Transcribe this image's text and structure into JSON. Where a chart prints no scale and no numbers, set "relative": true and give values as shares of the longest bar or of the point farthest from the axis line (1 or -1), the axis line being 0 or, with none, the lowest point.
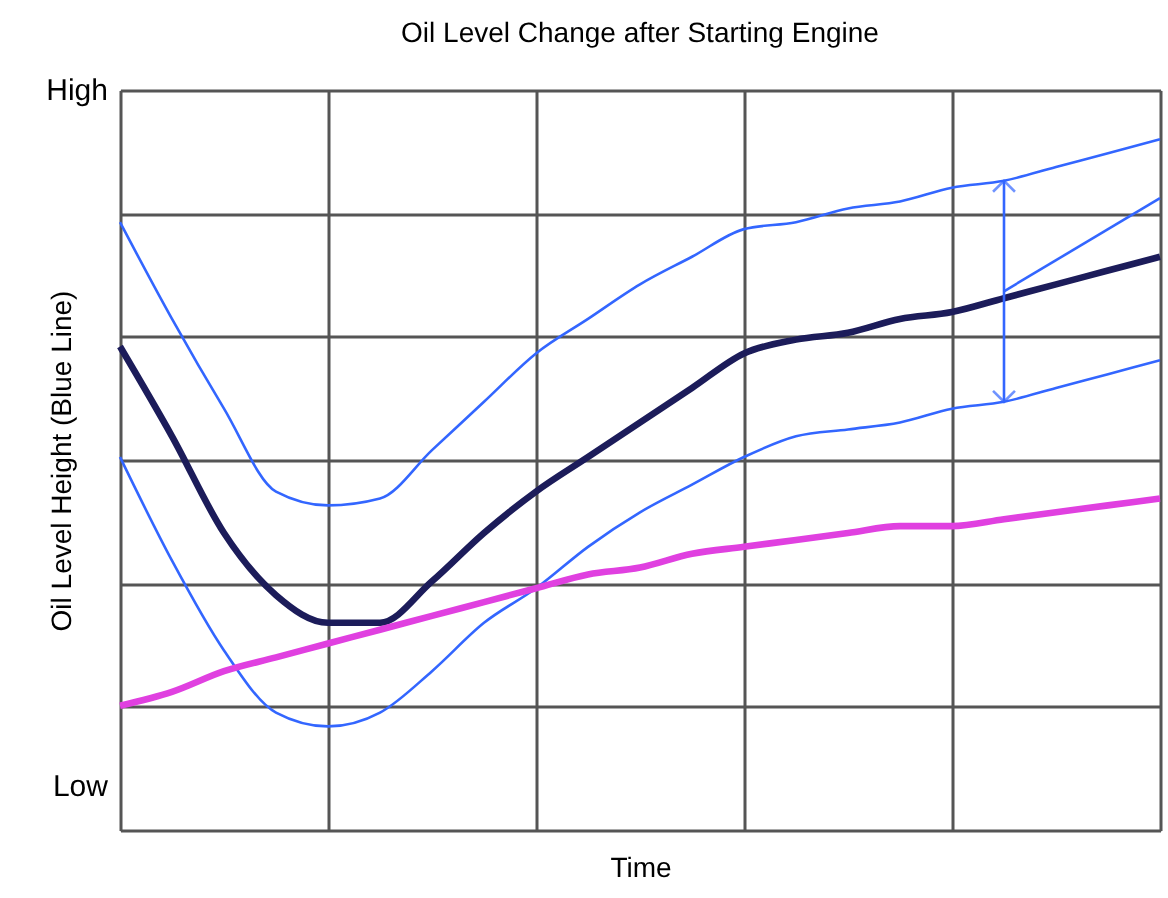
{
  "chart_data": {
    "type": "line",
    "title": "Oil Level Change after Starting Engine",
    "xlabel": "Time",
    "ylabel": "Oil Level Height (Blue Line)",
    "categories": [
      null,
      null,
      null,
      null,
      null,
      null,
      null,
      null,
      null,
      null,
      null,
      null,
      null,
      null,
      null,
      null,
      null,
      null,
      null,
      null,
      null
    ],
    "relative": true,
    "grid": true,
    "line_style": "solid",
    "annotations": [
      "High",
      "Low"
    ],
    "series": [
      {
        "color": "#3366ff",
        "values": [
          0.88,
          0.74,
          0.61,
          0.49,
          0.47,
          0.48,
          0.55,
          0.62,
          0.69,
          0.74,
          0.79,
          0.83,
          0.87,
          0.88,
          0.9,
          0.91,
          0.93,
          0.94,
          0.96,
          0.98,
          1.0
        ]
      },
      {
        "color": "#3366ff",
        "values": [
          0.54,
          0.39,
          0.26,
          0.17,
          0.15,
          0.17,
          0.23,
          0.3,
          0.35,
          0.41,
          0.46,
          0.5,
          0.54,
          0.57,
          0.58,
          0.59,
          0.61,
          0.62,
          0.64,
          0.66,
          0.68
        ]
      },
      {
        "color": "#1c1c5a",
        "values": [
          0.7,
          0.57,
          0.43,
          0.34,
          0.3,
          0.3,
          0.36,
          0.43,
          0.49,
          0.54,
          0.59,
          0.64,
          0.69,
          0.71,
          0.72,
          0.74,
          0.75,
          0.77,
          0.79,
          0.81,
          0.83
        ]
      },
      {
        "color": "#e040e0",
        "values": [
          0.18,
          0.2,
          0.23,
          0.25,
          0.27,
          0.29,
          0.31,
          0.33,
          0.35,
          0.37,
          0.38,
          0.4,
          0.41,
          0.42,
          0.43,
          0.44,
          0.44,
          0.45,
          0.46,
          0.47,
          0.48
        ]
      }
    ]
  }
}
